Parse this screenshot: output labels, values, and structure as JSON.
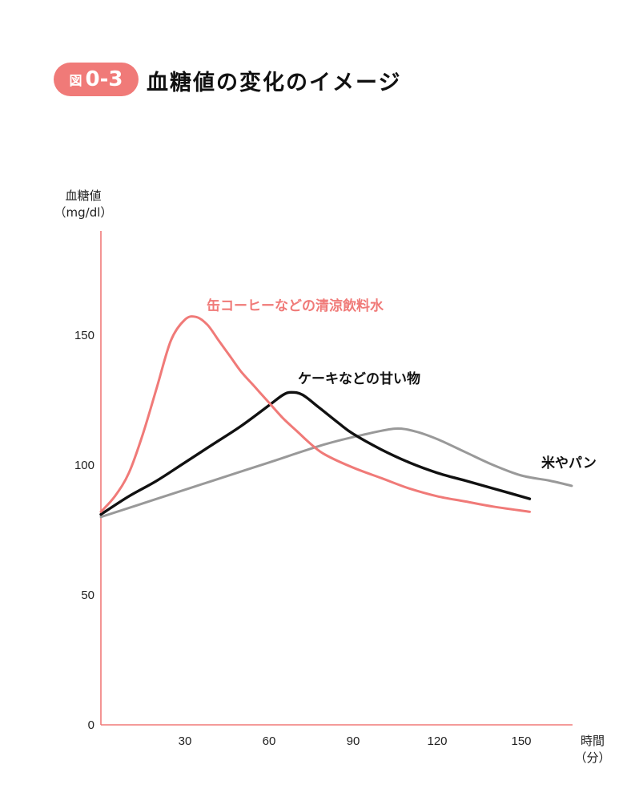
{
  "figure": {
    "badge_prefix": "図",
    "badge_number": "0-3",
    "title": "血糖値の変化のイメージ",
    "accent_color": "#f07a78"
  },
  "chart_data": {
    "type": "line",
    "title": "血糖値の変化のイメージ",
    "ylabel": "血糖値",
    "ylabel_unit": "（mg/dl）",
    "xlabel": "時間",
    "xlabel_unit": "（分）",
    "xlim": [
      0,
      168
    ],
    "ylim": [
      0,
      190
    ],
    "x_ticks": [
      30,
      60,
      90,
      120,
      150
    ],
    "y_ticks": [
      0,
      50,
      100,
      150
    ],
    "grid": false,
    "series": [
      {
        "name": "缶コーヒーなどの清涼飲料水",
        "color": "#f07a78",
        "x": [
          0,
          5,
          10,
          15,
          20,
          25,
          30,
          34,
          38,
          42,
          46,
          50,
          55,
          60,
          65,
          70,
          75,
          80,
          90,
          100,
          110,
          120,
          130,
          140,
          153
        ],
        "y": [
          82,
          88,
          97,
          112,
          130,
          148,
          156,
          157,
          154,
          148,
          142,
          136,
          130,
          124,
          118,
          113,
          108,
          104,
          99,
          95,
          91,
          88,
          86,
          84,
          82
        ]
      },
      {
        "name": "ケーキなどの甘い物",
        "color": "#111111",
        "x": [
          0,
          10,
          20,
          30,
          40,
          50,
          60,
          65,
          68,
          72,
          78,
          85,
          90,
          100,
          110,
          120,
          130,
          140,
          153
        ],
        "y": [
          81,
          88,
          94,
          101,
          108,
          115,
          123,
          127,
          128,
          127,
          122,
          116,
          112,
          106,
          101,
          97,
          94,
          91,
          87
        ]
      },
      {
        "name": "米やパン",
        "color": "#999999",
        "x": [
          0,
          20,
          40,
          60,
          80,
          95,
          105,
          112,
          120,
          130,
          140,
          150,
          160,
          168
        ],
        "y": [
          80,
          87,
          94,
          101,
          108,
          112,
          114,
          113,
          110,
          105,
          100,
          96,
          94,
          92
        ]
      }
    ]
  }
}
